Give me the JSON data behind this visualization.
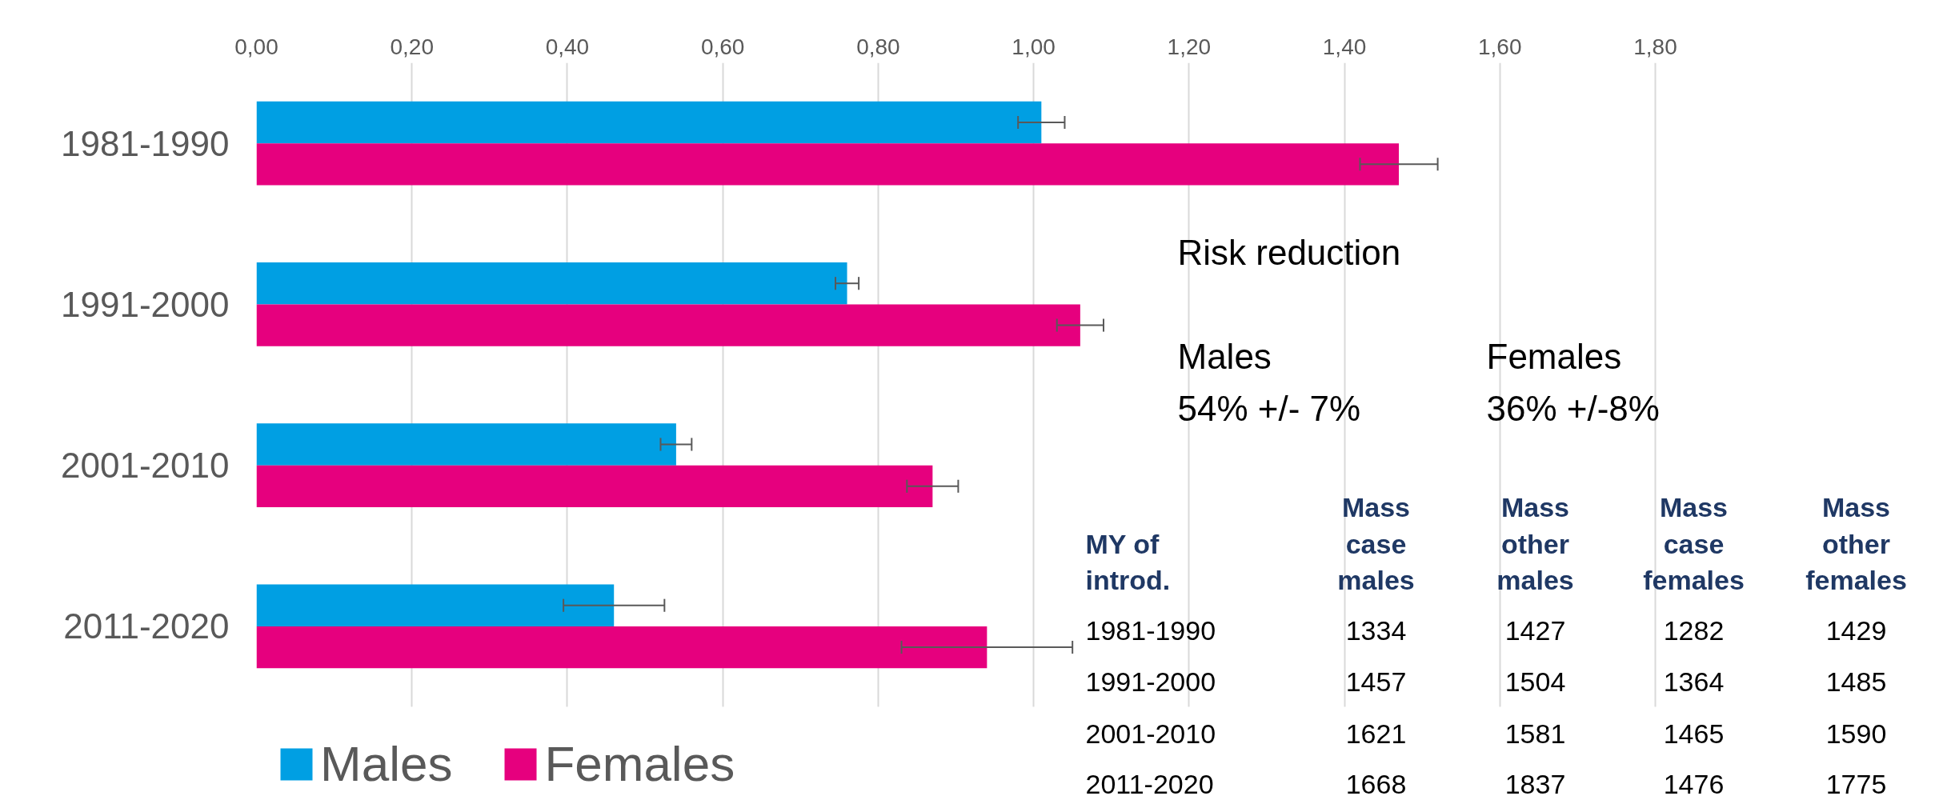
{
  "chart_data": {
    "type": "bar",
    "orientation": "horizontal",
    "categories": [
      "1981-1990",
      "1991-2000",
      "2001-2010",
      "2011-2020"
    ],
    "series": [
      {
        "name": "Males",
        "color": "#009fe3",
        "values": [
          1.01,
          0.76,
          0.54,
          0.46
        ],
        "errors": [
          0.03,
          0.015,
          0.02,
          0.065
        ]
      },
      {
        "name": "Females",
        "color": "#e6007e",
        "values": [
          1.47,
          1.06,
          0.87,
          0.94
        ],
        "errors": [
          0.05,
          0.03,
          0.033,
          0.11
        ]
      }
    ],
    "xlim": [
      0,
      1.8
    ],
    "xticks": [
      {
        "value": 0,
        "label": "0,00"
      },
      {
        "value": 0.2,
        "label": "0,20"
      },
      {
        "value": 0.4,
        "label": "0,40"
      },
      {
        "value": 0.6,
        "label": "0,60"
      },
      {
        "value": 0.8,
        "label": "0,80"
      },
      {
        "value": 1.0,
        "label": "1,00"
      },
      {
        "value": 1.2,
        "label": "1,20"
      },
      {
        "value": 1.4,
        "label": "1,40"
      },
      {
        "value": 1.6,
        "label": "1,60"
      },
      {
        "value": 1.8,
        "label": "1,80"
      }
    ],
    "grid": "x",
    "legend": "bottom",
    "annotations": [
      "Risk reduction",
      "Males",
      "54% +/- 7%",
      "Females",
      "36% +/-8%",
      "MY of\nintrod.",
      "Mass\ncase\nmales",
      "Mass\nother\nmales",
      "Mass\ncase\nfemales",
      "Mass\nother\nfemales",
      "1981-1990",
      "1334",
      "1427",
      "1282",
      "1429",
      "1991-2000",
      "1457",
      "1504",
      "1364",
      "1485",
      "2001-2010",
      "1621",
      "1581",
      "1465",
      "1590",
      "2011-2020",
      "1668",
      "1837",
      "1476",
      "1775"
    ]
  }
}
